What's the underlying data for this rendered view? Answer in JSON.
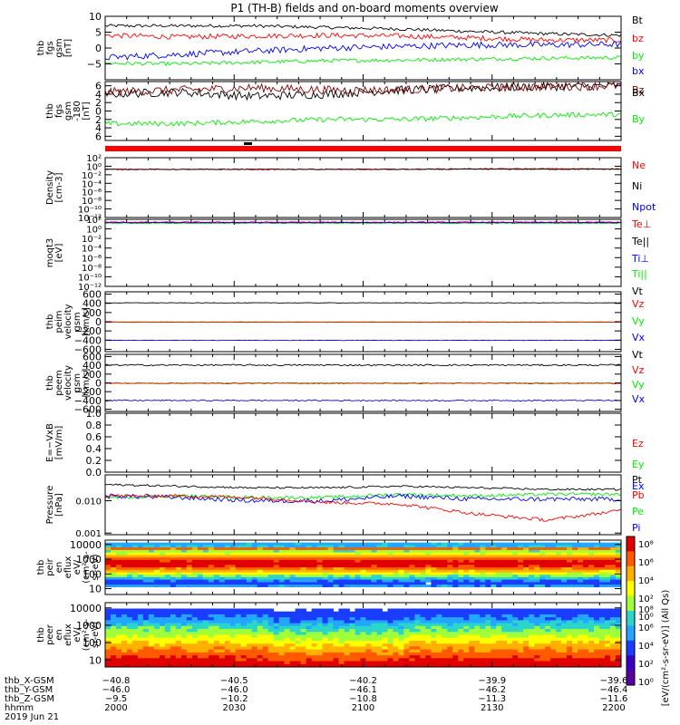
{
  "title": "P1 (TH-B) fields and on-board moments overview",
  "colors": {
    "black": "#000000",
    "red": "#ff0000",
    "green": "#00ee00",
    "blue": "#0000ff",
    "darkred": "#8b0000"
  },
  "chart_data": [
    {
      "type": "line",
      "ylabel": [
        "thb",
        "fgs",
        "gsm",
        "[nT]"
      ],
      "ylim": [
        -10,
        10
      ],
      "yticks": [
        "10",
        "5",
        "0",
        "−5"
      ],
      "yvals": [
        10,
        5,
        0,
        -5
      ],
      "legend": [
        {
          "name": "Bt",
          "color": "#000000"
        },
        {
          "name": "bz",
          "color": "#ff0000"
        },
        {
          "name": "by",
          "color": "#00ee00"
        },
        {
          "name": "bx",
          "color": "#0000ff"
        }
      ],
      "series": [
        {
          "name": "Bt",
          "color": "#000000",
          "mean": 6.4,
          "noise": 0.5,
          "trend": [
            7,
            7,
            7,
            6.5,
            6,
            5.2,
            4.5,
            4
          ]
        },
        {
          "name": "bz",
          "color": "#ff0000",
          "mean": 3.8,
          "noise": 0.8,
          "trend": [
            4,
            3.5,
            3.8,
            4,
            3.8,
            3.2,
            2.5,
            2.5
          ]
        },
        {
          "name": "by",
          "color": "#00ee00",
          "mean": -4.5,
          "noise": 0.6,
          "trend": [
            -4.8,
            -5,
            -4.5,
            -4,
            -3.8,
            -3.5,
            -3.2,
            -3
          ]
        },
        {
          "name": "bx",
          "color": "#0000ff",
          "mean": 0.5,
          "noise": 1.0,
          "trend": [
            -3,
            -2,
            -1,
            0,
            0.5,
            1,
            1,
            1.2
          ]
        }
      ]
    },
    {
      "type": "line",
      "ylabel": [
        "thb",
        "fgs",
        "gsm",
        "-180",
        "[nT]"
      ],
      "ylim": [
        -7,
        7
      ],
      "yticks": [
        "6",
        "4",
        "2",
        "0",
        "2",
        "4",
        "6"
      ],
      "yvals": [
        6,
        4,
        2,
        0,
        -2,
        -4,
        -6
      ],
      "legend": [
        {
          "name": "Bz",
          "color": "#8b0000"
        },
        {
          "name": "Bx",
          "color": "#000000"
        },
        {
          "name": "By",
          "color": "#00ee00"
        }
      ],
      "series": [
        {
          "name": "Bx",
          "color": "#000000",
          "mean": 4.3,
          "noise": 1.0,
          "trend": [
            4,
            4.5,
            3.5,
            4,
            5,
            5.5,
            5.8,
            6
          ]
        },
        {
          "name": "Bz",
          "color": "#8b0000",
          "mean": 4.8,
          "noise": 1.0,
          "trend": [
            4.5,
            5,
            5.5,
            5,
            5,
            5.5,
            5.8,
            6
          ]
        },
        {
          "name": "By",
          "color": "#00ee00",
          "mean": -2.5,
          "noise": 0.6,
          "trend": [
            -3,
            -3,
            -2.5,
            -2,
            -2,
            -1.5,
            -1,
            -0.8
          ]
        }
      ]
    },
    {
      "type": "line",
      "log": true,
      "ylabel": [
        "Density",
        "[cm-3]"
      ],
      "ylim": [
        -12,
        2
      ],
      "yticks": [
        "10²",
        "10⁰",
        "10⁻²",
        "10⁻⁴",
        "10⁻⁶",
        "10⁻⁸",
        "10⁻¹⁰",
        "10⁻¹²"
      ],
      "yvals": [
        2,
        0,
        -2,
        -4,
        -6,
        -8,
        -10,
        -12
      ],
      "legend": [
        {
          "name": "Ne",
          "color": "#ff0000"
        },
        {
          "name": "Ni",
          "color": "#000000"
        },
        {
          "name": "Npot",
          "color": "#0000ff"
        }
      ],
      "series": [
        {
          "name": "Ne",
          "color": "#ff0000",
          "mean": -0.7,
          "noise": 0.1,
          "trend": [
            -0.7,
            -0.7,
            -0.7,
            -0.7,
            -0.7,
            -0.6,
            -0.6,
            -0.6
          ]
        },
        {
          "name": "Ni",
          "color": "#000000",
          "mean": -0.75,
          "noise": 0.08,
          "trend": [
            -0.75,
            -0.75,
            -0.75,
            -0.75,
            -0.75,
            -0.7,
            -0.7,
            -0.7
          ]
        }
      ]
    },
    {
      "type": "line",
      "log": true,
      "ylabel": [
        "moqt3",
        "[eV]"
      ],
      "ylim": [
        -12,
        2
      ],
      "yticks": [
        "10²",
        "10⁰",
        "10⁻²",
        "10⁻⁴",
        "10⁻⁶",
        "10⁻⁸",
        "10⁻¹⁰",
        "10⁻¹²"
      ],
      "yvals": [
        2,
        0,
        -2,
        -4,
        -6,
        -8,
        -10,
        -12
      ],
      "legend": [
        {
          "name": "Te⊥",
          "color": "#ff0000"
        },
        {
          "name": "Te||",
          "color": "#000000"
        },
        {
          "name": "Ti⊥",
          "color": "#0000ff"
        },
        {
          "name": "Ti||",
          "color": "#00ee00"
        }
      ],
      "series": [
        {
          "name": "Te",
          "color": "#ff0000",
          "mean": 1.4,
          "noise": 0.1,
          "trend": [
            1.4,
            1.4,
            1.4,
            1.4,
            1.4,
            1.4,
            1.4,
            1.4
          ]
        },
        {
          "name": "Ti",
          "color": "#00ee00",
          "mean": 1.2,
          "noise": 0.1,
          "trend": [
            1.2,
            1.2,
            1.2,
            1.2,
            1.2,
            1.2,
            1.2,
            1.2
          ]
        },
        {
          "name": "Tb",
          "color": "#0000ff",
          "mean": 1.3,
          "noise": 0.05,
          "trend": [
            1.3,
            1.3,
            1.3,
            1.3,
            1.3,
            1.3,
            1.3,
            1.3
          ]
        }
      ]
    },
    {
      "type": "line",
      "ylabel": [
        "thb",
        "peim",
        "velocity",
        "gsm",
        "[km/s]"
      ],
      "ylim": [
        -650,
        650
      ],
      "yticks": [
        "600",
        "400",
        "200",
        "0",
        "−200",
        "−400",
        "−600"
      ],
      "yvals": [
        600,
        400,
        200,
        0,
        -200,
        -400,
        -600
      ],
      "legend": [
        {
          "name": "Vt",
          "color": "#000000"
        },
        {
          "name": "Vz",
          "color": "#ff0000"
        },
        {
          "name": "Vy",
          "color": "#00ee00"
        },
        {
          "name": "Vx",
          "color": "#0000ff"
        }
      ],
      "series": [
        {
          "name": "Vt",
          "color": "#000000",
          "mean": 410,
          "noise": 4,
          "trend": [
            410,
            410,
            410,
            410,
            410,
            410,
            410,
            410
          ]
        },
        {
          "name": "Vy",
          "color": "#00ee00",
          "mean": -5,
          "noise": 4,
          "trend": [
            -5,
            -5,
            -5,
            -5,
            -5,
            -5,
            -5,
            -5
          ]
        },
        {
          "name": "Vz",
          "color": "#ff0000",
          "mean": -10,
          "noise": 5,
          "trend": [
            -10,
            -10,
            -10,
            -10,
            -10,
            -10,
            -10,
            -10
          ]
        },
        {
          "name": "Vx",
          "color": "#0000ff",
          "mean": -405,
          "noise": 4,
          "trend": [
            -405,
            -405,
            -405,
            -405,
            -405,
            -405,
            -405,
            -405
          ]
        }
      ]
    },
    {
      "type": "line",
      "ylabel": [
        "thb",
        "peem",
        "velocity",
        "gsm",
        "[km/s]"
      ],
      "ylim": [
        -650,
        650
      ],
      "yticks": [
        "600",
        "400",
        "200",
        "0",
        "−200",
        "−400",
        "−600"
      ],
      "yvals": [
        600,
        400,
        200,
        0,
        -200,
        -400,
        -600
      ],
      "legend": [
        {
          "name": "Vt",
          "color": "#000000"
        },
        {
          "name": "Vz",
          "color": "#ff0000"
        },
        {
          "name": "Vy",
          "color": "#00ee00"
        },
        {
          "name": "Vx",
          "color": "#0000ff"
        }
      ],
      "series": [
        {
          "name": "Vt",
          "color": "#000000",
          "mean": 405,
          "noise": 18,
          "trend": [
            405,
            405,
            405,
            405,
            405,
            405,
            405,
            405
          ]
        },
        {
          "name": "Vy",
          "color": "#00ee00",
          "mean": -5,
          "noise": 10,
          "trend": [
            -5,
            -5,
            -5,
            -5,
            -5,
            -5,
            -5,
            -5
          ]
        },
        {
          "name": "Vz",
          "color": "#ff0000",
          "mean": -10,
          "noise": 10,
          "trend": [
            -10,
            -10,
            -10,
            -10,
            -10,
            -10,
            -10,
            -10
          ]
        },
        {
          "name": "Vx",
          "color": "#0000ff",
          "mean": -400,
          "noise": 14,
          "trend": [
            -400,
            -400,
            -400,
            -400,
            -400,
            -400,
            -400,
            -400
          ]
        }
      ]
    },
    {
      "type": "line",
      "ylabel": [
        "E=−VxB",
        "[mV/m]"
      ],
      "ylim": [
        0,
        1
      ],
      "yticks": [
        "1.0",
        "0.8",
        "0.6",
        "0.4",
        "0.2",
        "0.0"
      ],
      "yvals": [
        1,
        0.8,
        0.6,
        0.4,
        0.2,
        0
      ],
      "legend": [
        {
          "name": "Ez",
          "color": "#ff0000"
        },
        {
          "name": "Ey",
          "color": "#00ee00"
        },
        {
          "name": "Ex",
          "color": "#0000ff"
        }
      ],
      "series": []
    },
    {
      "type": "line",
      "log": true,
      "ylabel": [
        "Pressure",
        "[nPa]"
      ],
      "ylim": [
        -3.05,
        -1.2
      ],
      "yticks": [
        "0.010",
        "0.001"
      ],
      "yvals": [
        -2,
        -3
      ],
      "legend": [
        {
          "name": "Pt",
          "color": "#000000"
        },
        {
          "name": "Pb",
          "color": "#ff0000"
        },
        {
          "name": "Pe",
          "color": "#00ee00"
        },
        {
          "name": "Pi",
          "color": "#0000ff"
        }
      ],
      "series": [
        {
          "name": "Pt",
          "color": "#000000",
          "mean": -1.55,
          "noise": 0.03,
          "trend": [
            -1.5,
            -1.55,
            -1.6,
            -1.6,
            -1.55,
            -1.6,
            -1.65,
            -1.65
          ]
        },
        {
          "name": "Pe",
          "color": "#00ee00",
          "mean": -1.9,
          "noise": 0.05,
          "trend": [
            -1.9,
            -1.85,
            -1.9,
            -1.9,
            -1.8,
            -1.85,
            -1.8,
            -1.8
          ]
        },
        {
          "name": "Pi",
          "color": "#0000ff",
          "mean": -1.95,
          "noise": 0.07,
          "trend": [
            -1.85,
            -1.9,
            -2.0,
            -2.0,
            -1.85,
            -1.95,
            -1.95,
            -1.95
          ]
        },
        {
          "name": "Pb",
          "color": "#ff0000",
          "mean": -1.9,
          "noise": 0.05,
          "trend": [
            -1.85,
            -1.85,
            -1.9,
            -2.05,
            -2.1,
            -2.4,
            -2.6,
            -2.3
          ]
        }
      ]
    },
    {
      "type": "heatmap",
      "ylabel": [
        "thb",
        "peir",
        "en",
        "eflux",
        "eV/",
        "(cm²-s-",
        "sr-eV)"
      ],
      "ylim": [
        0.6,
        4.3
      ],
      "yticks": [
        "10000",
        "1000",
        "100",
        "10"
      ],
      "yvals": [
        4,
        3,
        2,
        1
      ]
    },
    {
      "type": "heatmap",
      "ylabel": [
        "thb",
        "peer",
        "en",
        "eflux",
        "eV/",
        "(cm²-s-",
        "sr-eV)"
      ],
      "ylim": [
        0.6,
        4.3
      ],
      "yticks": [
        "10000",
        "1000",
        "100",
        "10"
      ],
      "yvals": [
        4,
        3,
        2,
        1
      ]
    }
  ],
  "colorbar": {
    "labels": [
      "10⁸",
      "10⁶",
      "10⁴",
      "10²",
      "10⁰"
    ],
    "title": "[eV/(cm²-s-sr-eV)] (All Qs)"
  },
  "xaxis": {
    "rows": [
      {
        "label": "thb_X-GSM",
        "values": [
          "−40.8",
          "−40.5",
          "−40.2",
          "−39.9",
          "−39.6"
        ]
      },
      {
        "label": "thb_Y-GSM",
        "values": [
          "−46.0",
          "−46.0",
          "−46.1",
          "−46.2",
          "−46.4"
        ]
      },
      {
        "label": "thb_Z-GSM",
        "values": [
          "−9.5",
          "−10.2",
          "−10.8",
          "−11.3",
          "−11.6"
        ]
      },
      {
        "label": "hhmm",
        "values": [
          "2000",
          "2030",
          "2100",
          "2130",
          "2200"
        ]
      }
    ],
    "date": "2019 Jun 21"
  }
}
